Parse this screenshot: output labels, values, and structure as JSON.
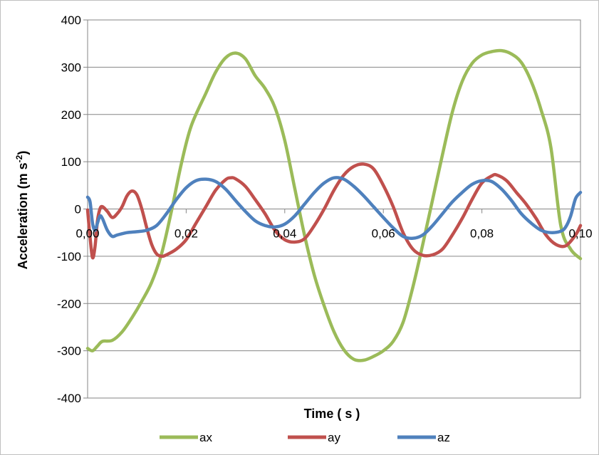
{
  "chart_data": {
    "type": "line",
    "title": "",
    "xlabel": "Time ( s )",
    "ylabel": "Acceleration  (m s-2)",
    "ylabel_parts": {
      "main": "Acceleration  (m s",
      "sup": "-2",
      "end": ")"
    },
    "xlim": [
      0,
      0.1
    ],
    "ylim": [
      -400,
      400
    ],
    "x_ticks": [
      "0,00",
      "0,02",
      "0,04",
      "0,06",
      "0,08",
      "0,10"
    ],
    "x_tick_values": [
      0,
      0.02,
      0.04,
      0.06,
      0.08,
      0.1
    ],
    "y_ticks": [
      "400",
      "300",
      "200",
      "100",
      "0",
      "-100",
      "-200",
      "-300",
      "-400"
    ],
    "y_tick_values": [
      400,
      300,
      200,
      100,
      0,
      -100,
      -200,
      -300,
      -400
    ],
    "grid": "horizontal",
    "legend_position": "bottom",
    "series": [
      {
        "name": "ax",
        "color": "#9bbb59",
        "points": [
          [
            0.0,
            -295
          ],
          [
            0.001,
            -300
          ],
          [
            0.002,
            -290
          ],
          [
            0.003,
            -280
          ],
          [
            0.005,
            -278
          ],
          [
            0.007,
            -260
          ],
          [
            0.009,
            -230
          ],
          [
            0.011,
            -195
          ],
          [
            0.013,
            -155
          ],
          [
            0.015,
            -95
          ],
          [
            0.017,
            -5
          ],
          [
            0.019,
            95
          ],
          [
            0.021,
            175
          ],
          [
            0.024,
            245
          ],
          [
            0.026,
            290
          ],
          [
            0.028,
            320
          ],
          [
            0.03,
            330
          ],
          [
            0.032,
            318
          ],
          [
            0.034,
            282
          ],
          [
            0.036,
            255
          ],
          [
            0.038,
            215
          ],
          [
            0.04,
            145
          ],
          [
            0.042,
            45
          ],
          [
            0.044,
            -55
          ],
          [
            0.046,
            -140
          ],
          [
            0.048,
            -205
          ],
          [
            0.05,
            -260
          ],
          [
            0.052,
            -298
          ],
          [
            0.054,
            -318
          ],
          [
            0.056,
            -320
          ],
          [
            0.058,
            -312
          ],
          [
            0.06,
            -300
          ],
          [
            0.062,
            -280
          ],
          [
            0.064,
            -240
          ],
          [
            0.066,
            -165
          ],
          [
            0.068,
            -75
          ],
          [
            0.07,
            20
          ],
          [
            0.072,
            115
          ],
          [
            0.074,
            205
          ],
          [
            0.076,
            270
          ],
          [
            0.078,
            308
          ],
          [
            0.08,
            326
          ],
          [
            0.082,
            333
          ],
          [
            0.084,
            335
          ],
          [
            0.086,
            328
          ],
          [
            0.088,
            310
          ],
          [
            0.09,
            270
          ],
          [
            0.092,
            210
          ],
          [
            0.094,
            130
          ],
          [
            0.096,
            -35
          ],
          [
            0.098,
            -85
          ],
          [
            0.1,
            -105
          ]
        ]
      },
      {
        "name": "ay",
        "color": "#c0504d",
        "points": [
          [
            0.0,
            -2
          ],
          [
            0.0005,
            -60
          ],
          [
            0.001,
            -103
          ],
          [
            0.0015,
            -80
          ],
          [
            0.002,
            -25
          ],
          [
            0.0025,
            0
          ],
          [
            0.003,
            5
          ],
          [
            0.004,
            -5
          ],
          [
            0.005,
            -18
          ],
          [
            0.006,
            -10
          ],
          [
            0.007,
            5
          ],
          [
            0.008,
            28
          ],
          [
            0.009,
            38
          ],
          [
            0.01,
            30
          ],
          [
            0.011,
            0
          ],
          [
            0.012,
            -40
          ],
          [
            0.013,
            -75
          ],
          [
            0.014,
            -95
          ],
          [
            0.015,
            -100
          ],
          [
            0.016,
            -97
          ],
          [
            0.018,
            -85
          ],
          [
            0.02,
            -65
          ],
          [
            0.022,
            -30
          ],
          [
            0.024,
            5
          ],
          [
            0.026,
            40
          ],
          [
            0.028,
            62
          ],
          [
            0.029,
            66
          ],
          [
            0.03,
            64
          ],
          [
            0.032,
            48
          ],
          [
            0.034,
            20
          ],
          [
            0.036,
            -10
          ],
          [
            0.038,
            -45
          ],
          [
            0.04,
            -65
          ],
          [
            0.042,
            -70
          ],
          [
            0.044,
            -63
          ],
          [
            0.046,
            -35
          ],
          [
            0.048,
            0
          ],
          [
            0.05,
            40
          ],
          [
            0.052,
            72
          ],
          [
            0.054,
            90
          ],
          [
            0.056,
            95
          ],
          [
            0.058,
            85
          ],
          [
            0.06,
            50
          ],
          [
            0.062,
            5
          ],
          [
            0.064,
            -50
          ],
          [
            0.066,
            -85
          ],
          [
            0.068,
            -98
          ],
          [
            0.07,
            -97
          ],
          [
            0.072,
            -85
          ],
          [
            0.074,
            -55
          ],
          [
            0.076,
            -20
          ],
          [
            0.078,
            20
          ],
          [
            0.08,
            55
          ],
          [
            0.082,
            70
          ],
          [
            0.083,
            72
          ],
          [
            0.085,
            60
          ],
          [
            0.087,
            35
          ],
          [
            0.089,
            10
          ],
          [
            0.091,
            -20
          ],
          [
            0.093,
            -55
          ],
          [
            0.095,
            -75
          ],
          [
            0.097,
            -78
          ],
          [
            0.099,
            -55
          ],
          [
            0.1,
            -35
          ]
        ]
      },
      {
        "name": "az",
        "color": "#4f81bd",
        "points": [
          [
            0.0,
            25
          ],
          [
            0.0005,
            15
          ],
          [
            0.001,
            -30
          ],
          [
            0.0015,
            -45
          ],
          [
            0.002,
            -30
          ],
          [
            0.0025,
            -15
          ],
          [
            0.003,
            -20
          ],
          [
            0.004,
            -45
          ],
          [
            0.005,
            -58
          ],
          [
            0.006,
            -55
          ],
          [
            0.008,
            -50
          ],
          [
            0.01,
            -48
          ],
          [
            0.012,
            -45
          ],
          [
            0.014,
            -35
          ],
          [
            0.016,
            -10
          ],
          [
            0.018,
            20
          ],
          [
            0.02,
            45
          ],
          [
            0.022,
            60
          ],
          [
            0.024,
            63
          ],
          [
            0.026,
            58
          ],
          [
            0.028,
            42
          ],
          [
            0.03,
            18
          ],
          [
            0.032,
            -5
          ],
          [
            0.034,
            -25
          ],
          [
            0.036,
            -35
          ],
          [
            0.038,
            -38
          ],
          [
            0.04,
            -32
          ],
          [
            0.042,
            -15
          ],
          [
            0.044,
            10
          ],
          [
            0.046,
            35
          ],
          [
            0.048,
            55
          ],
          [
            0.05,
            66
          ],
          [
            0.052,
            63
          ],
          [
            0.054,
            48
          ],
          [
            0.056,
            28
          ],
          [
            0.058,
            5
          ],
          [
            0.06,
            -18
          ],
          [
            0.062,
            -40
          ],
          [
            0.064,
            -58
          ],
          [
            0.066,
            -62
          ],
          [
            0.068,
            -55
          ],
          [
            0.07,
            -35
          ],
          [
            0.072,
            -10
          ],
          [
            0.074,
            15
          ],
          [
            0.076,
            35
          ],
          [
            0.078,
            52
          ],
          [
            0.08,
            60
          ],
          [
            0.082,
            58
          ],
          [
            0.084,
            42
          ],
          [
            0.086,
            18
          ],
          [
            0.088,
            -10
          ],
          [
            0.09,
            -30
          ],
          [
            0.092,
            -45
          ],
          [
            0.094,
            -50
          ],
          [
            0.096,
            -47
          ],
          [
            0.097,
            -38
          ],
          [
            0.098,
            -15
          ],
          [
            0.099,
            22
          ],
          [
            0.1,
            35
          ]
        ]
      }
    ]
  }
}
